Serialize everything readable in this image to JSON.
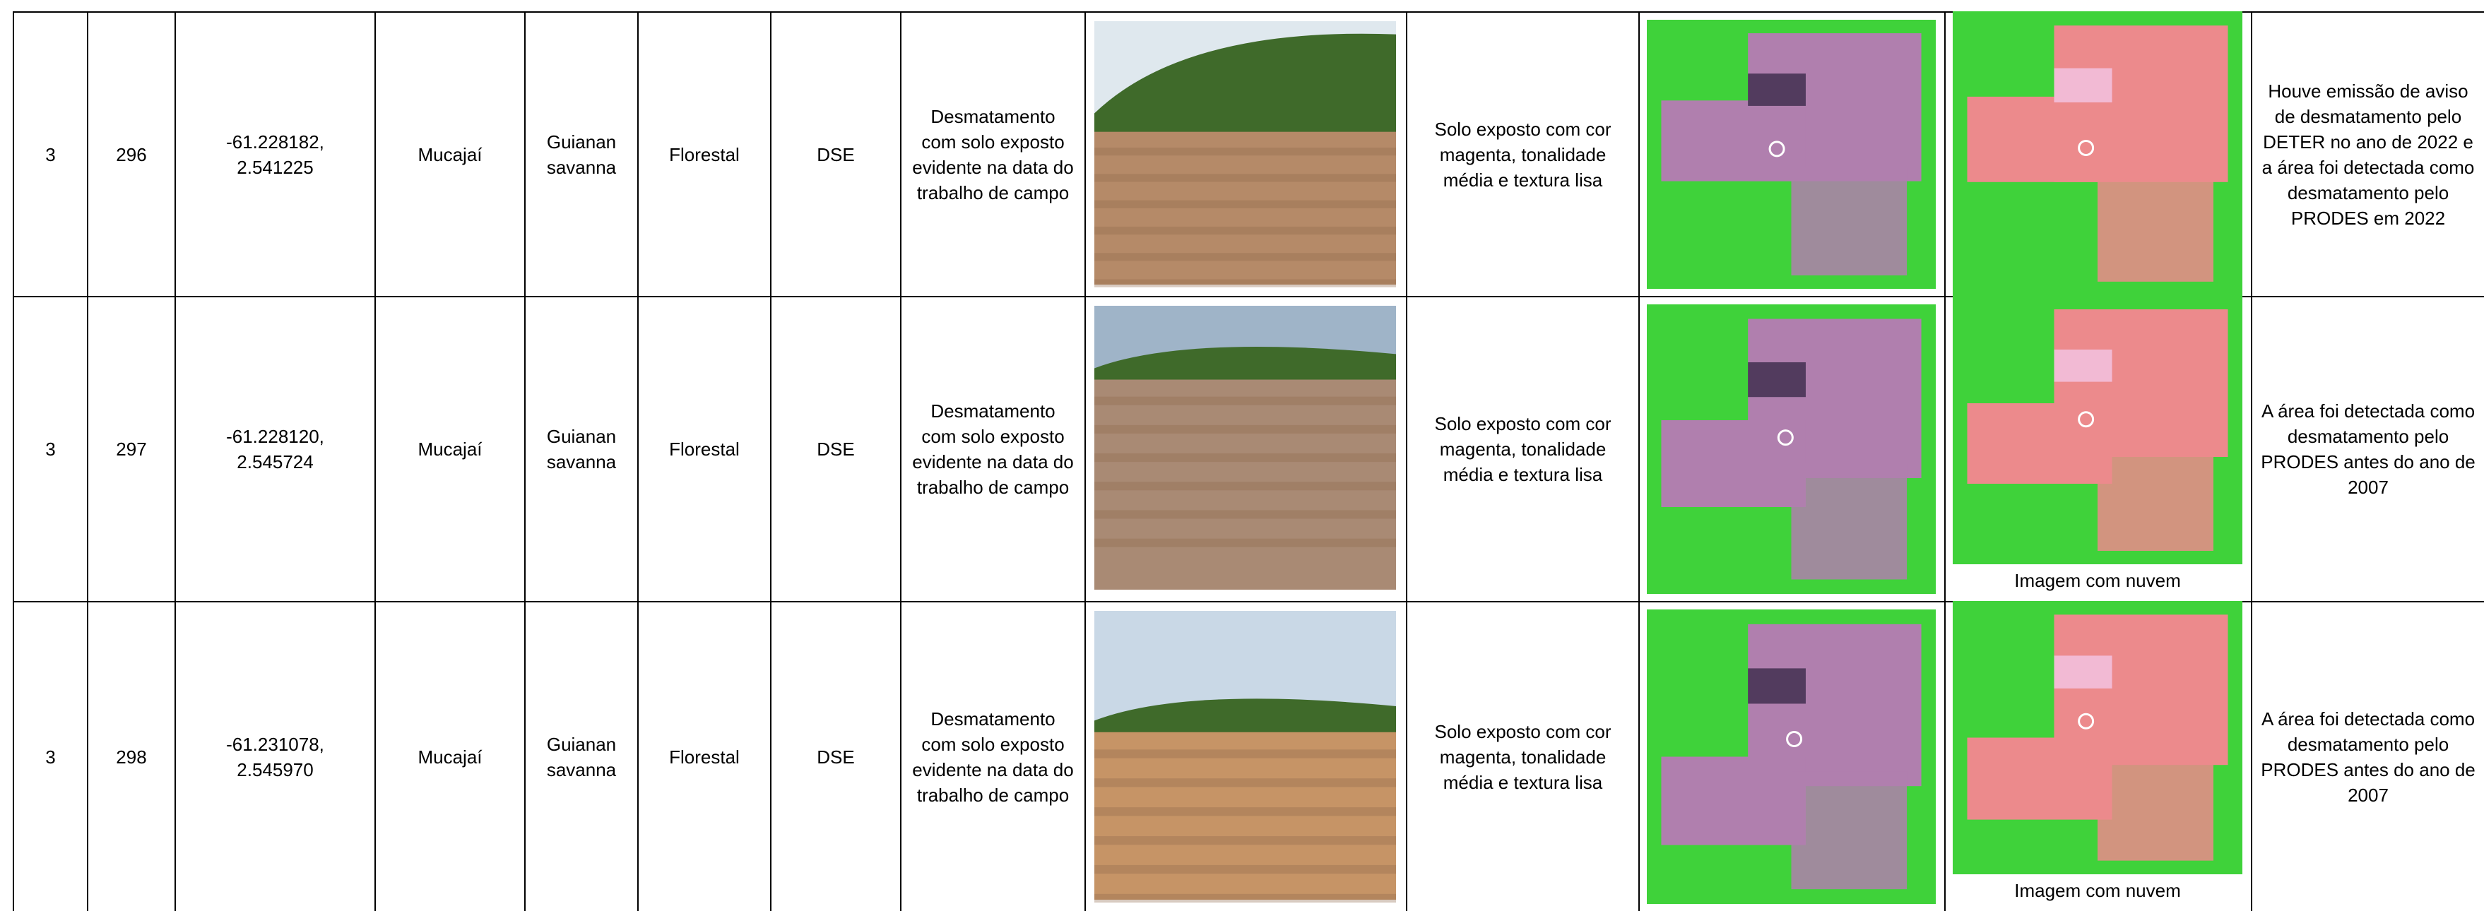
{
  "table": {
    "rows": [
      {
        "cells": [
          "3",
          "296",
          "-61.228182, 2.541225",
          "Mucajaí",
          "Guianan savanna",
          "Florestal",
          "DSE",
          "Desmatamento com solo exposto evidente na data do trabalho de campo"
        ],
        "interpretation": "Solo exposto com cor magenta, tonalidade média e textura lisa",
        "note": "Houve emissão de aviso de desmatamento pelo DETER no ano de 2022 e a área foi detectada como desmatamento pelo PRODES em 2022"
      },
      {
        "cells": [
          "3",
          "297",
          "-61.228120, 2.545724",
          "Mucajaí",
          "Guianan savanna",
          "Florestal",
          "DSE",
          "Desmatamento com solo exposto evidente na data do trabalho de campo"
        ],
        "interpretation": "Solo exposto com cor magenta, tonalidade média e textura lisa",
        "caption": "Imagem com nuvem",
        "note": "A área foi detectada como desmatamento pelo PRODES antes do ano de 2007"
      },
      {
        "cells": [
          "3",
          "298",
          "-61.231078, 2.545970",
          "Mucajaí",
          "Guianan savanna",
          "Florestal",
          "DSE",
          "Desmatamento com solo exposto evidente na data do trabalho de campo"
        ],
        "interpretation": "Solo exposto com cor magenta, tonalidade média e textura lisa",
        "caption": "Imagem com nuvem",
        "note": "A área foi detectada como desmatamento pelo PRODES antes do ano de 2007"
      }
    ]
  }
}
